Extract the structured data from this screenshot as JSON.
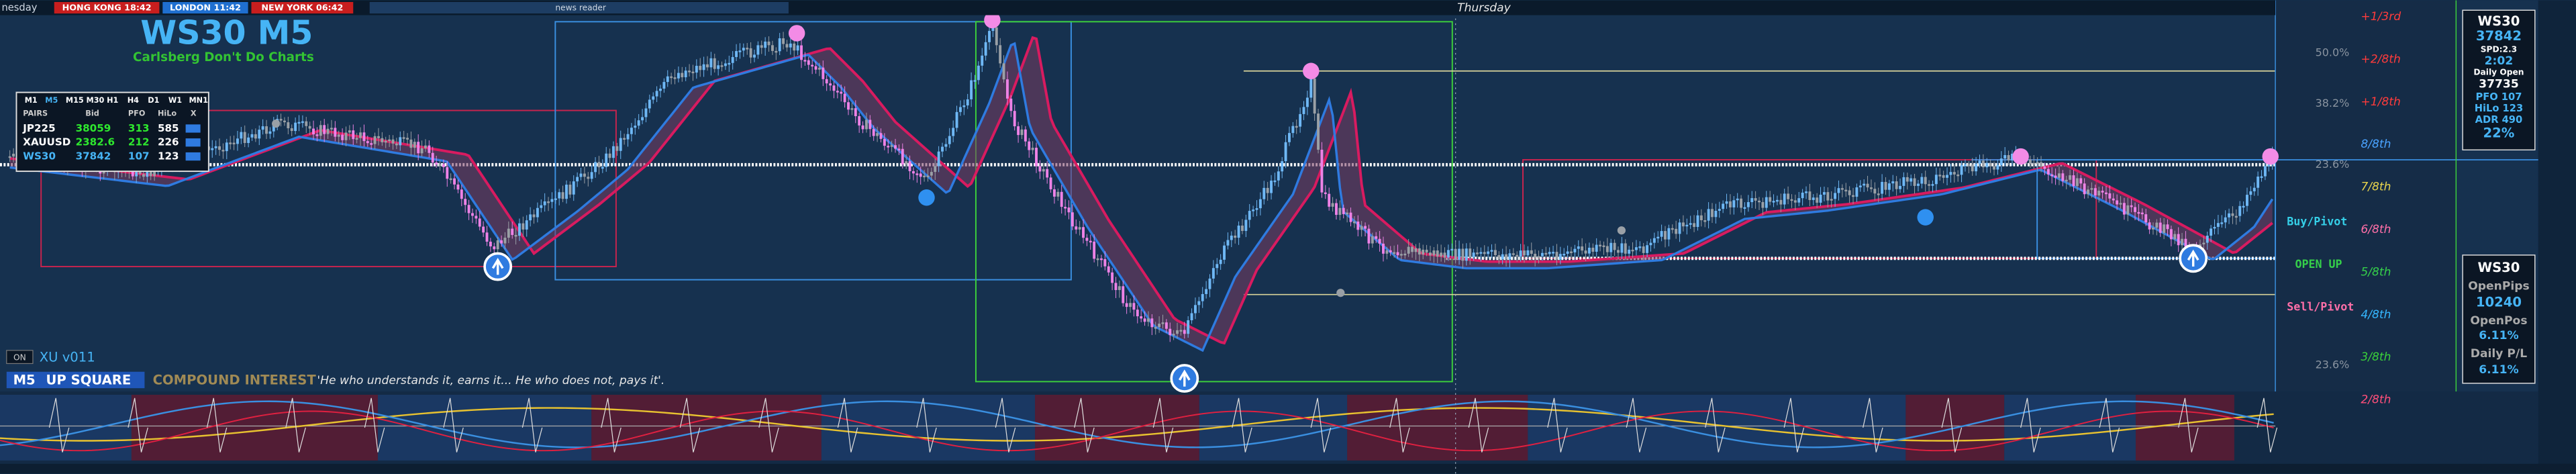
{
  "top_bar": {
    "day_prev": "nesday",
    "clocks": [
      "HONG KONG 18:42",
      "LONDON 11:42",
      "NEW YORK 06:42"
    ],
    "news": "news reader",
    "day_next": "Thursday"
  },
  "header": {
    "title": "WS30 M5",
    "subtitle": "Carlsberg Don't Do Charts"
  },
  "table": {
    "timeframes": [
      "M1",
      "M5",
      "M15",
      "M30",
      "H1",
      "H4",
      "D1",
      "W1",
      "MN1"
    ],
    "columns": [
      "PAIRS",
      "Bid",
      "PFO",
      "HiLo",
      "X"
    ],
    "rows": [
      [
        "JP225",
        "38059",
        "313",
        "585"
      ],
      [
        "XAUUSD",
        "2382.6",
        "212",
        "226"
      ],
      [
        "WS30",
        "37842",
        "107",
        "123"
      ]
    ]
  },
  "footer": {
    "toggle": "ON",
    "version": "XU v011",
    "timeframe": "M5",
    "signal": "UP SQUARE",
    "strategy": "COMPOUND INTEREST",
    "quote": "'He who understands it, earns it... He who does not, pays it'."
  },
  "levels": [
    "+1/3rd",
    "+2/8th",
    "+1/8th",
    "8/8th",
    "7/8th",
    "6/8th",
    "5/8th",
    "4/8th",
    "3/8th",
    "2/8th"
  ],
  "fibs": [
    "50.0%",
    "38.2%",
    "23.6%",
    "23.6%"
  ],
  "pivots": [
    "Buy/Pivot",
    "OPEN UP",
    "Sell/Pivot"
  ],
  "info_panel": {
    "symbol": "WS30",
    "price": "37842",
    "spread": "SPD:2.3",
    "timer": "2:02",
    "open_label": "Daily Open",
    "open": "37735",
    "pfo": "PFO 107",
    "hilo": "HiLo 123",
    "adr": "ADR 490",
    "adr_pct": "22%"
  },
  "pl_panel": {
    "symbol": "WS30",
    "pips_label": "OpenPips",
    "pips": "10240",
    "pos_label": "OpenPos",
    "pos": "6.11%",
    "pl_label": "Daily P/L",
    "pl": "6.11%"
  }
}
